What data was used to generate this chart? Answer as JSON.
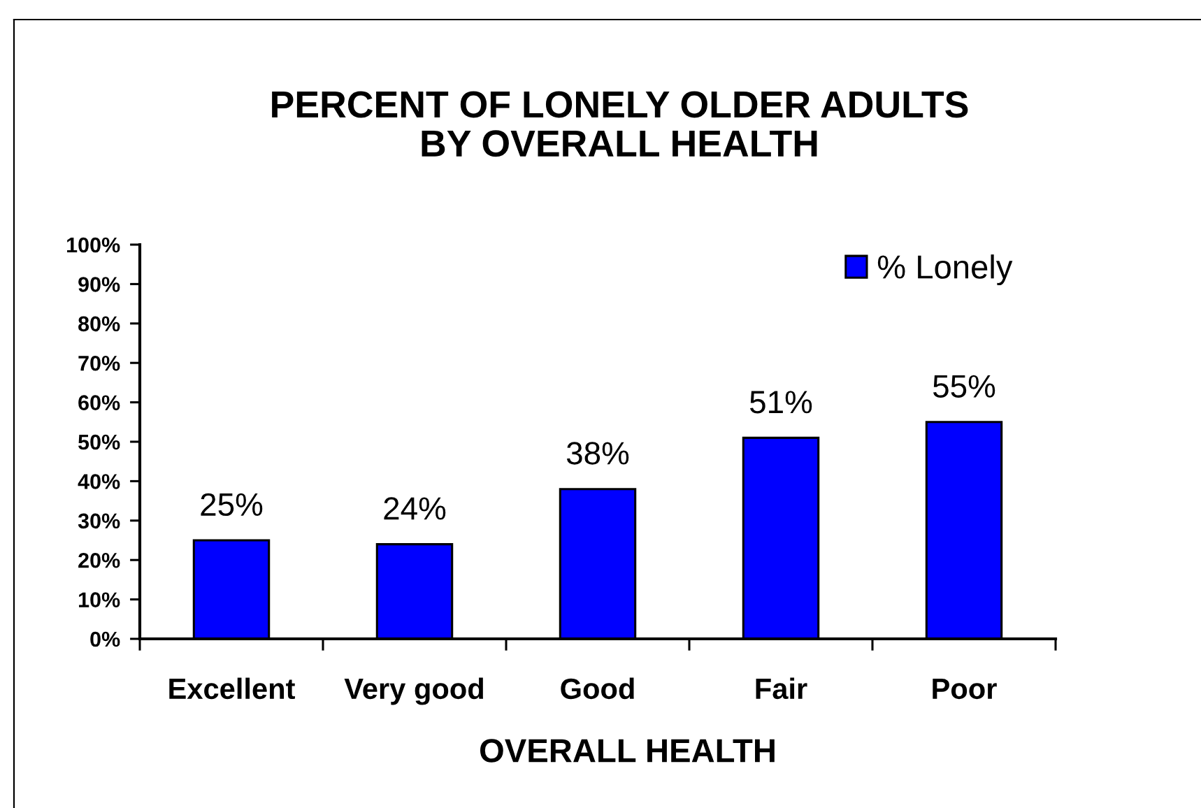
{
  "chart_data": {
    "type": "bar",
    "title": "PERCENT OF LONELY OLDER ADULTS\nBY OVERALL HEALTH",
    "xlabel": "OVERALL HEALTH",
    "categories": [
      "Excellent",
      "Very good",
      "Good",
      "Fair",
      "Poor"
    ],
    "series": [
      {
        "name": "% Lonely",
        "color": "#0000ff",
        "values": [
          25,
          24,
          38,
          51,
          55
        ],
        "value_labels": [
          "25%",
          "24%",
          "38%",
          "51%",
          "55%"
        ]
      }
    ],
    "ylim": [
      0,
      100
    ],
    "yticks": [
      {
        "value": 0,
        "label": "0%"
      },
      {
        "value": 10,
        "label": "10%"
      },
      {
        "value": 20,
        "label": "20%"
      },
      {
        "value": 30,
        "label": "30%"
      },
      {
        "value": 40,
        "label": "40%"
      },
      {
        "value": 50,
        "label": "50%"
      },
      {
        "value": 60,
        "label": "60%"
      },
      {
        "value": 70,
        "label": "70%"
      },
      {
        "value": 80,
        "label": "80%"
      },
      {
        "value": 90,
        "label": "90%"
      },
      {
        "value": 100,
        "label": "100%"
      }
    ],
    "grid": false,
    "legend": "top right"
  }
}
